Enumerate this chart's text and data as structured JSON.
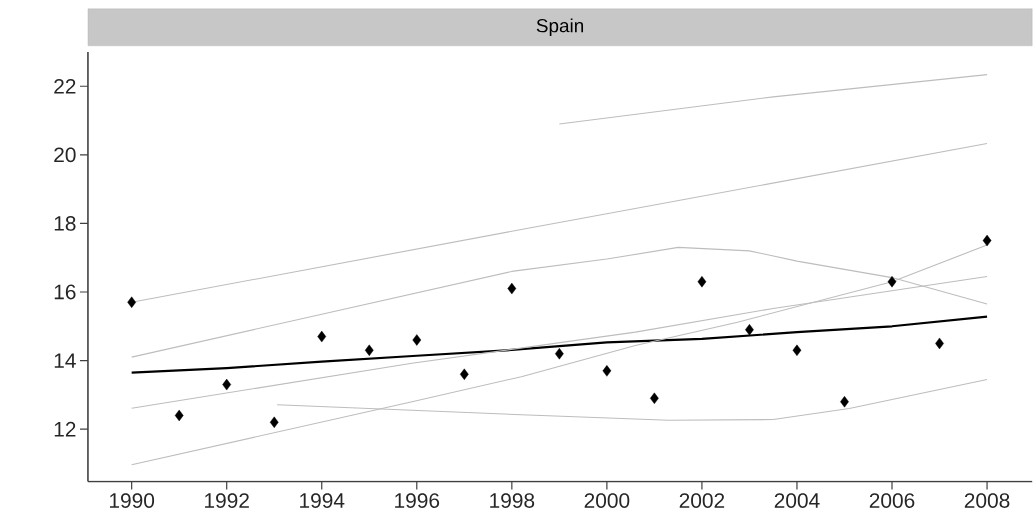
{
  "chart_data": {
    "type": "scatter",
    "title": "Spain",
    "xlim": [
      1989.08,
      2008.95
    ],
    "ylim": [
      10.47,
      23.0
    ],
    "xticks": [
      1990,
      1992,
      1994,
      1996,
      1998,
      2000,
      2002,
      2004,
      2006,
      2008
    ],
    "yticks": [
      12,
      14,
      16,
      18,
      20,
      22
    ],
    "series": [
      {
        "marker": "diamond",
        "color": "#000000",
        "x": [
          1990,
          1991,
          1992,
          1993,
          1994,
          1995,
          1996,
          1997,
          1998,
          1999,
          2000,
          2001,
          2002,
          2003,
          2004,
          2005,
          2006,
          2007,
          2008
        ],
        "values": [
          15.7,
          12.4,
          13.3,
          12.2,
          14.7,
          14.3,
          14.6,
          13.6,
          16.1,
          14.2,
          13.7,
          12.9,
          16.3,
          14.9,
          14.3,
          12.8,
          16.3,
          14.5,
          17.5
        ]
      },
      {
        "type": "line",
        "color": "#000000",
        "x": [
          1990,
          1992,
          1994,
          1996,
          1998,
          2000,
          2002,
          2004,
          2006,
          2008
        ],
        "values": [
          13.65,
          13.78,
          13.97,
          14.14,
          14.31,
          14.53,
          14.63,
          14.83,
          15.0,
          15.28
        ]
      },
      {
        "type": "line",
        "color": "#bdbdbd",
        "x": [
          1999,
          2003.5,
          2008
        ],
        "values": [
          20.9,
          21.69,
          22.34
        ]
      },
      {
        "type": "line",
        "color": "#bdbdbd",
        "x": [
          1990,
          1998,
          2008
        ],
        "values": [
          15.7,
          17.77,
          20.33
        ]
      },
      {
        "type": "line",
        "color": "#bdbdbd",
        "x": [
          1990,
          1994,
          1998,
          2000,
          2001.5,
          2003,
          2004,
          2006,
          2008
        ],
        "values": [
          14.1,
          15.35,
          16.6,
          16.96,
          17.3,
          17.2,
          16.9,
          16.42,
          15.65
        ]
      },
      {
        "type": "line",
        "color": "#bdbdbd",
        "x": [
          1990,
          1995.9,
          2000.6,
          2003.5,
          2008
        ],
        "values": [
          12.61,
          13.92,
          14.83,
          15.52,
          16.45
        ]
      },
      {
        "type": "line",
        "color": "#bdbdbd",
        "x": [
          1990,
          1995.9,
          1998.2,
          2000.6,
          2002.75,
          2006,
          2008
        ],
        "values": [
          10.96,
          12.8,
          13.53,
          14.44,
          15.12,
          16.3,
          17.37
        ]
      },
      {
        "type": "line",
        "color": "#bdbdbd",
        "x": [
          1993.06,
          1998.2,
          2001.3,
          2003.5,
          2005.1,
          2008
        ],
        "values": [
          12.71,
          12.42,
          12.26,
          12.28,
          12.6,
          13.45
        ]
      }
    ]
  }
}
